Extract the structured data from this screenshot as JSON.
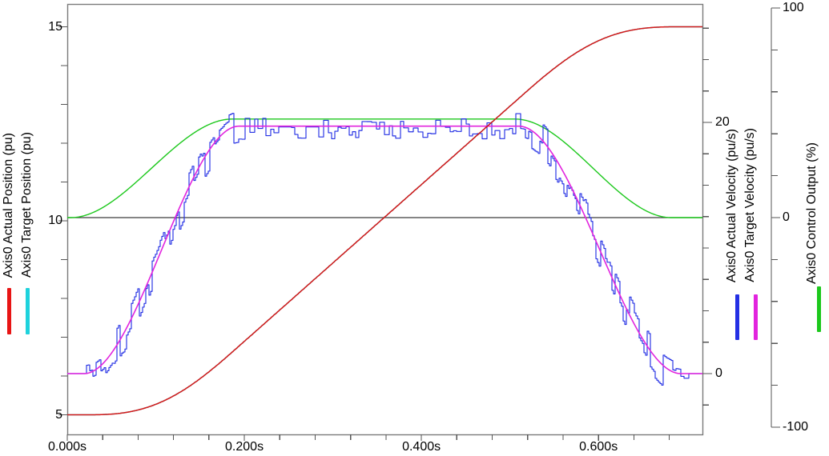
{
  "chart_data": {
    "type": "line",
    "title": "",
    "x_axis": {
      "ticks": [
        {
          "t": 0.0,
          "label": "0.000s"
        },
        {
          "t": 0.2,
          "label": "0.200s"
        },
        {
          "t": 0.4,
          "label": "0.400s"
        },
        {
          "t": 0.6,
          "label": "0.600s"
        }
      ],
      "minor_step_s": 0.04,
      "range_s": [
        0.0,
        0.717
      ]
    },
    "y_axes": [
      {
        "id": "position",
        "side": "left",
        "title_lines": [
          "Axis0 Actual Position (pu)",
          "Axis0 Target Position (pu)"
        ],
        "labeled_ticks": [
          15,
          10,
          5
        ],
        "minor_step": 1,
        "unit": "pu"
      },
      {
        "id": "velocity",
        "side": "right-inner",
        "title_lines": [
          "Axis0 Actual Velocity (pu/s)",
          "Axis0 Target Velocity (pu/s)"
        ],
        "labeled_ticks": [
          20,
          0
        ],
        "minor_step": 2.5,
        "unit": "pu/s"
      },
      {
        "id": "control",
        "side": "right-outer",
        "title_lines": [
          "Axis0 Control Output (%)"
        ],
        "labeled_ticks": [
          100,
          0,
          -100
        ],
        "minor_step": 20,
        "range": [
          -100,
          100
        ],
        "unit": "%"
      }
    ],
    "zero_line": {
      "axis": "control",
      "value": 0,
      "color": "#3c3c3c"
    },
    "series": [
      {
        "name": "Axis0 Target Position (pu)",
        "axis": "position",
        "color": "#1ed2dc",
        "profile": "s_curve_position",
        "params": {
          "from": 5,
          "to": 15,
          "t0": 0.019,
          "t1": 0.194,
          "t2": 0.51,
          "t3": 0.693
        }
      },
      {
        "name": "Axis0 Control Output (%)",
        "axis": "control",
        "color": "#1cc81c",
        "profile": "s_trapezoid",
        "params": {
          "peak": 47,
          "t0": 0.004,
          "t1": 0.186,
          "t2": 0.506,
          "t3": 0.682
        }
      },
      {
        "name": "Axis0 Actual Velocity (pu/s)",
        "axis": "velocity",
        "color": "#2430e4",
        "profile": "s_trapezoid_noisy",
        "params": {
          "peak": 19.7,
          "t0": 0.019,
          "t1": 0.194,
          "t2": 0.51,
          "t3": 0.693,
          "noise": 0.8,
          "seed": 20
        }
      },
      {
        "name": "Axis0 Target Velocity (pu/s)",
        "axis": "velocity",
        "color": "#e224de",
        "profile": "s_trapezoid",
        "params": {
          "peak": 19.7,
          "t0": 0.019,
          "t1": 0.194,
          "t2": 0.51,
          "t3": 0.693
        }
      },
      {
        "name": "Axis0 Actual Position (pu)",
        "axis": "position",
        "color": "#d81616",
        "profile": "s_curve_position",
        "params": {
          "from": 5,
          "to": 15,
          "t0": 0.019,
          "t1": 0.194,
          "t2": 0.51,
          "t3": 0.693
        }
      }
    ]
  },
  "legend": {
    "left": [
      {
        "label": "Axis0 Actual Position (pu)",
        "color": "#e81414"
      },
      {
        "label": "Axis0 Target Position (pu)",
        "color": "#1ed2dc"
      }
    ],
    "right_velocity": [
      {
        "label": "Axis0 Actual Velocity (pu/s)",
        "color": "#2430e4"
      },
      {
        "label": "Axis0 Target Velocity (pu/s)",
        "color": "#e224de"
      }
    ],
    "right_control": [
      {
        "label": "Axis0 Control Output (%)",
        "color": "#1cc81c"
      }
    ]
  }
}
